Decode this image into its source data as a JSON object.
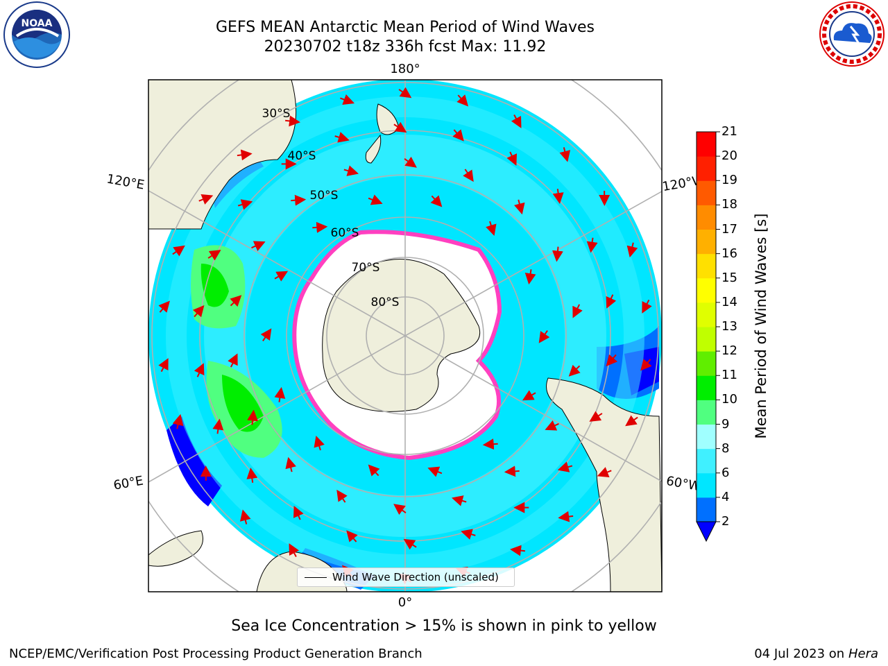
{
  "title_line1": "GEFS MEAN Antarctic Mean Period of Wind Waves",
  "title_line2": "20230702 t18z 336h fcst   Max: 11.92",
  "logos": {
    "left": "NOAA",
    "right_ring": "NATIONAL WEATHER SERVICE"
  },
  "longitude_labels": {
    "top": "180°",
    "bottom": "0°",
    "left_upper": "120°E",
    "left_lower": "60°E",
    "right_upper": "120°W",
    "right_lower": "60°W"
  },
  "latitude_labels": [
    "30°S",
    "40°S",
    "50°S",
    "60°S",
    "70°S",
    "80°S"
  ],
  "legend": {
    "label": "Wind Wave Direction (unscaled)"
  },
  "colorbar": {
    "title": "Mean Period of Wind Waves [s]",
    "ticks": [
      "2",
      "4",
      "6",
      "8",
      "9",
      "10",
      "11",
      "12",
      "13",
      "14",
      "15",
      "16",
      "17",
      "18",
      "19",
      "20",
      "21"
    ],
    "colors": [
      "#0070ff",
      "#00e6ff",
      "#40f0ff",
      "#a0ffff",
      "#50ff80",
      "#00ee00",
      "#60ee00",
      "#c0ff00",
      "#e0ff00",
      "#ffff00",
      "#ffe000",
      "#ffb000",
      "#ff8c00",
      "#ff5a00",
      "#ff2000",
      "#ff0000"
    ],
    "under_color": "#0000ff"
  },
  "footnote": "Sea Ice Concentration > 15% is shown in pink to yellow",
  "credit_left": "NCEP/EMC/Verification Post Processing Product Generation Branch",
  "credit_right_date": "04 Jul 2023 on ",
  "credit_right_machine": "Hera"
}
